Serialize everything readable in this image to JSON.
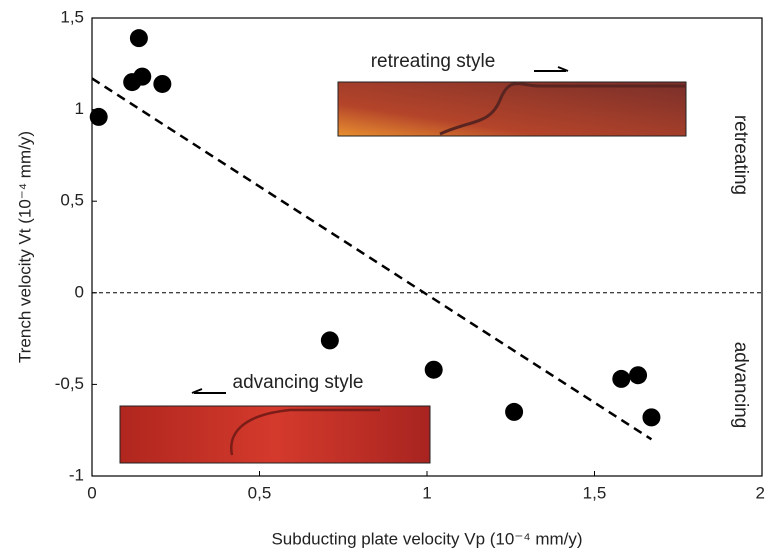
{
  "chart_data": {
    "type": "scatter",
    "x_label": "Subducting plate velocity Vp (10⁻⁴ mm/y)",
    "y_label": "Trench velocity Vt (10⁻⁴ mm/y)",
    "xlim": [
      0,
      2
    ],
    "ylim": [
      -1,
      1.5
    ],
    "xticks": [
      0,
      {
        "value": 0.5,
        "label": "0,5"
      },
      1,
      {
        "value": 1.5,
        "label": "1,5"
      },
      2
    ],
    "yticks": [
      {
        "value": 1.5,
        "label": "1,5"
      },
      1,
      {
        "value": 0.5,
        "label": "0,5"
      },
      0,
      {
        "value": -0.5,
        "label": "-0,5"
      },
      -1
    ],
    "series": [
      {
        "color": "#000000",
        "x": [
          0.02,
          0.14,
          0.12,
          0.15,
          0.21,
          0.71,
          1.02,
          1.26,
          1.58,
          1.63,
          1.67
        ],
        "values": [
          0.96,
          1.39,
          1.15,
          1.18,
          1.14,
          -0.26,
          -0.42,
          -0.65,
          -0.47,
          -0.45,
          -0.68
        ]
      }
    ],
    "fit_line": {
      "x": [
        0,
        1.67
      ],
      "values": [
        1.17,
        -0.8
      ]
    },
    "annotations": [
      "retreating style",
      "advancing style",
      "retreating",
      "advancing"
    ]
  }
}
